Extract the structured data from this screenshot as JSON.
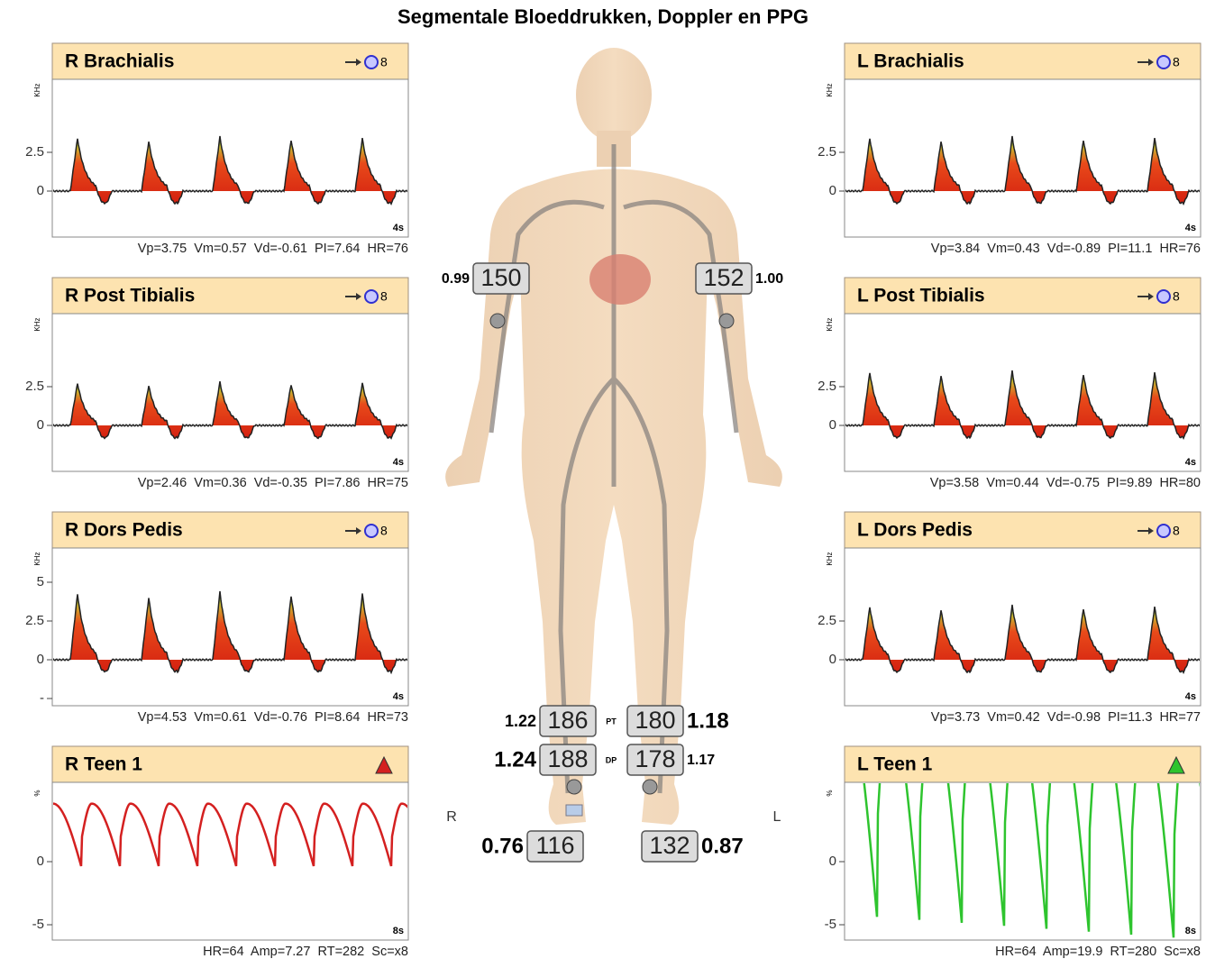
{
  "header": {
    "title": "Segmentale Bloeddrukken, Doppler en PPG"
  },
  "panels": [
    {
      "title": "R Brachialis",
      "badge": "8",
      "unit": "KHz",
      "yticks": [
        "2.5",
        "0"
      ],
      "duration": "4s",
      "stats": "Vp=3.75  Vm=0.57  Vd=-0.61  PI=7.64  HR=76"
    },
    {
      "title": "R Post Tibialis",
      "badge": "8",
      "unit": "KHz",
      "yticks": [
        "2.5",
        "0"
      ],
      "duration": "4s",
      "stats": "Vp=2.46  Vm=0.36  Vd=-0.35  PI=7.86  HR=75"
    },
    {
      "title": "R Dors Pedis",
      "badge": "8",
      "unit": "KHz",
      "yticks": [
        "5",
        "2.5",
        "0",
        "-"
      ],
      "duration": "4s",
      "stats": "Vp=4.53  Vm=0.61  Vd=-0.76  PI=8.64  HR=73"
    },
    {
      "title": "R Teen 1",
      "color": "#d42020",
      "unit": "%",
      "yticks": [
        "0",
        "-5"
      ],
      "duration": "8s",
      "stats": "HR=64  Amp=7.27  RT=282  Sc=x8"
    },
    {
      "title": "L Brachialis",
      "badge": "8",
      "unit": "KHz",
      "yticks": [
        "2.5",
        "0"
      ],
      "duration": "4s",
      "stats": "Vp=3.84  Vm=0.43  Vd=-0.89  PI=11.1  HR=76"
    },
    {
      "title": "L Post Tibialis",
      "badge": "8",
      "unit": "KHz",
      "yticks": [
        "2.5",
        "0"
      ],
      "duration": "4s",
      "stats": "Vp=3.58  Vm=0.44  Vd=-0.75  PI=9.89  HR=80"
    },
    {
      "title": "L Dors Pedis",
      "badge": "8",
      "unit": "KHz",
      "yticks": [
        "2.5",
        "0"
      ],
      "duration": "4s",
      "stats": "Vp=3.73  Vm=0.42  Vd=-0.98  PI=11.3  HR=77"
    },
    {
      "title": "L Teen 1",
      "color": "#2ec42e",
      "unit": "%",
      "yticks": [
        "0",
        "-5"
      ],
      "duration": "8s",
      "stats": "HR=64  Amp=19.9  RT=280  Sc=x8"
    }
  ],
  "body": {
    "side_labels": [
      "R",
      "L"
    ],
    "row_labels": [
      "PT",
      "DP"
    ],
    "pressures": [
      {
        "index": "0.99",
        "pressure": "150"
      },
      {
        "pressure": "152",
        "index": "1.00"
      },
      {
        "index": "1.22",
        "pressure": "186"
      },
      {
        "pressure": "180",
        "index": "1.18"
      },
      {
        "index": "1.24",
        "pressure": "188"
      },
      {
        "pressure": "178",
        "index": "1.17"
      },
      {
        "index": "0.76",
        "pressure": "116"
      },
      {
        "pressure": "132",
        "index": "0.87"
      }
    ]
  }
}
